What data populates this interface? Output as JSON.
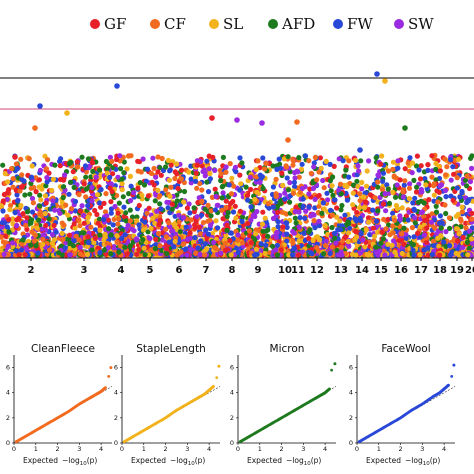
{
  "legend": [
    {
      "label": "GF",
      "color": "#e8202a"
    },
    {
      "label": "CF",
      "color": "#f26a1f"
    },
    {
      "label": "SL",
      "color": "#f2b21b"
    },
    {
      "label": "AFD",
      "color": "#1e7a1e"
    },
    {
      "label": "FW",
      "color": "#2a48d8"
    },
    {
      "label": "SW",
      "color": "#9a2be0"
    }
  ],
  "chart_data": [
    {
      "type": "scatter",
      "chart": "manhattan",
      "chromosome_labels": [
        "2",
        "3",
        "4",
        "5",
        "6",
        "7",
        "8",
        "9",
        "10",
        "11",
        "12",
        "13",
        "14",
        "15",
        "16",
        "17",
        "18",
        "19",
        "20"
      ],
      "threshold_lines": [
        {
          "style": "genome-wide",
          "color": "#000000"
        },
        {
          "style": "suggestive",
          "color": "#d1487a"
        }
      ],
      "grid": false
    },
    {
      "type": "scatter",
      "chart": "qq",
      "title": "CleanFleece",
      "color": "#f26a1f",
      "xlabel": "Expected",
      "xticks": [
        "0",
        "1",
        "2",
        "3",
        "4"
      ],
      "yticks": [
        "0",
        "2",
        "4",
        "6"
      ],
      "xlim": [
        0,
        4.5
      ],
      "ylim": [
        0,
        7
      ],
      "points": [
        [
          0.1,
          0.1
        ],
        [
          0.5,
          0.5
        ],
        [
          1,
          1
        ],
        [
          1.5,
          1.5
        ],
        [
          2,
          2
        ],
        [
          2.5,
          2.5
        ],
        [
          3,
          3.1
        ],
        [
          3.5,
          3.6
        ],
        [
          3.8,
          3.9
        ],
        [
          4,
          4.1
        ],
        [
          4.2,
          4.4
        ],
        [
          4.35,
          5.3
        ],
        [
          4.45,
          6
        ]
      ]
    },
    {
      "type": "scatter",
      "chart": "qq",
      "title": "StapleLength",
      "color": "#f2b21b",
      "xlabel": "Expected",
      "xticks": [
        "0",
        "1",
        "2",
        "3",
        "4"
      ],
      "yticks": [
        "0",
        "2",
        "4",
        "6"
      ],
      "xlim": [
        0,
        4.5
      ],
      "ylim": [
        0,
        7
      ],
      "points": [
        [
          0.1,
          0.1
        ],
        [
          0.5,
          0.5
        ],
        [
          1,
          1
        ],
        [
          1.5,
          1.5
        ],
        [
          2,
          2
        ],
        [
          2.5,
          2.6
        ],
        [
          3,
          3.1
        ],
        [
          3.5,
          3.6
        ],
        [
          3.8,
          3.9
        ],
        [
          4,
          4.2
        ],
        [
          4.2,
          4.5
        ],
        [
          4.35,
          5.2
        ],
        [
          4.45,
          6.1
        ]
      ]
    },
    {
      "type": "scatter",
      "chart": "qq",
      "title": "Micron",
      "color": "#1e7a1e",
      "xlabel": "Expected",
      "xticks": [
        "0",
        "1",
        "2",
        "3",
        "4"
      ],
      "yticks": [
        "0",
        "2",
        "4",
        "6"
      ],
      "xlim": [
        0,
        4.5
      ],
      "ylim": [
        0,
        7
      ],
      "points": [
        [
          0.1,
          0.1
        ],
        [
          0.5,
          0.5
        ],
        [
          1,
          1
        ],
        [
          1.5,
          1.5
        ],
        [
          2,
          2
        ],
        [
          2.5,
          2.5
        ],
        [
          3,
          3
        ],
        [
          3.5,
          3.5
        ],
        [
          3.8,
          3.8
        ],
        [
          4,
          4
        ],
        [
          4.2,
          4.3
        ],
        [
          4.3,
          5.8
        ],
        [
          4.45,
          6.3
        ]
      ]
    },
    {
      "type": "scatter",
      "chart": "qq",
      "title": "FaceWool",
      "color": "#2a48d8",
      "xlabel": "Expected",
      "xticks": [
        "0",
        "1",
        "2",
        "3",
        "4"
      ],
      "yticks": [
        "0",
        "2",
        "4",
        "6"
      ],
      "xlim": [
        0,
        4.5
      ],
      "ylim": [
        0,
        7
      ],
      "points": [
        [
          0.1,
          0.1
        ],
        [
          0.5,
          0.5
        ],
        [
          1,
          1
        ],
        [
          1.5,
          1.5
        ],
        [
          2,
          2
        ],
        [
          2.5,
          2.6
        ],
        [
          3,
          3.1
        ],
        [
          3.5,
          3.7
        ],
        [
          3.8,
          4
        ],
        [
          4,
          4.3
        ],
        [
          4.2,
          4.6
        ],
        [
          4.35,
          5.3
        ],
        [
          4.45,
          6.2
        ]
      ]
    }
  ]
}
